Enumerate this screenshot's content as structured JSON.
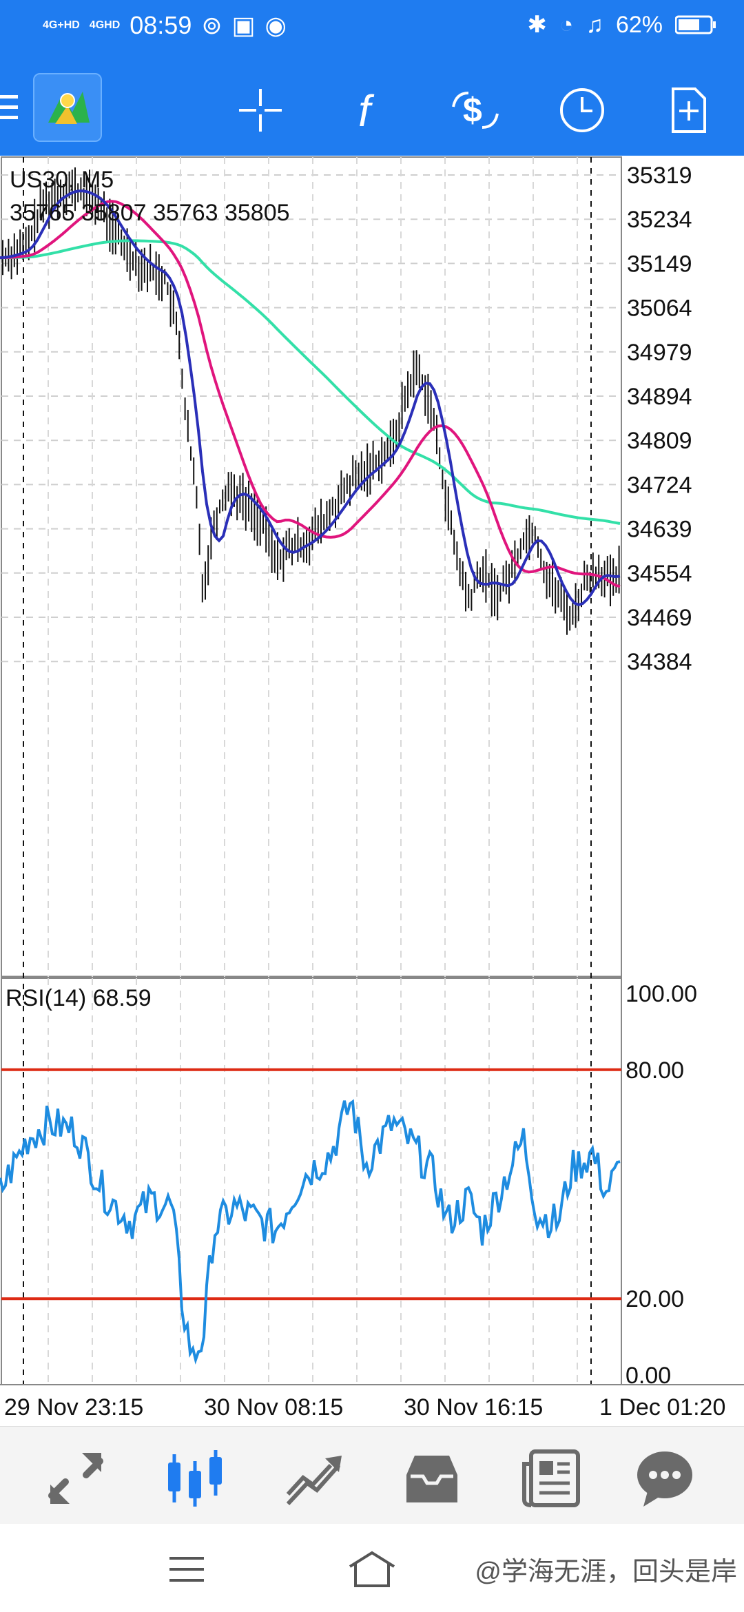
{
  "status_bar": {
    "net1": "4G+HD",
    "net2": "4GHD",
    "time": "08:59",
    "battery": "62%"
  },
  "toolbar": {
    "icons": [
      "menu-icon",
      "metatrader-logo",
      "crosshair-icon",
      "function-icon",
      "trade-icon",
      "clock-icon",
      "new-order-icon"
    ]
  },
  "chart": {
    "symbol": "US30, M5",
    "ohlc": "35765 35807 35763 35805",
    "price_ticks": [
      "35319",
      "35234",
      "35149",
      "35064",
      "34979",
      "34894",
      "34809",
      "34724",
      "34639",
      "34554",
      "34469",
      "34384"
    ],
    "rsi_label": "RSI(14) 68.59",
    "rsi_ticks": [
      "100.00",
      "80.00",
      "20.00",
      "0.00"
    ],
    "time_labels": [
      "29 Nov 23:15",
      "30 Nov 08:15",
      "30 Nov 16:15",
      "1 Dec 01:20"
    ]
  },
  "colors": {
    "accent": "#1f7cf0",
    "ma_fast": "#2a2fb8",
    "ma_mid": "#e0157d",
    "ma_slow": "#33e0a8",
    "rsi_line": "#1e8ce0",
    "rsi_levels": "#dd2a14"
  },
  "bottom_nav": [
    "quotes-icon",
    "chart-icon",
    "trade-icon",
    "history-icon",
    "news-icon",
    "chat-icon"
  ],
  "watermark": "@学海无涯，回头是岸"
}
